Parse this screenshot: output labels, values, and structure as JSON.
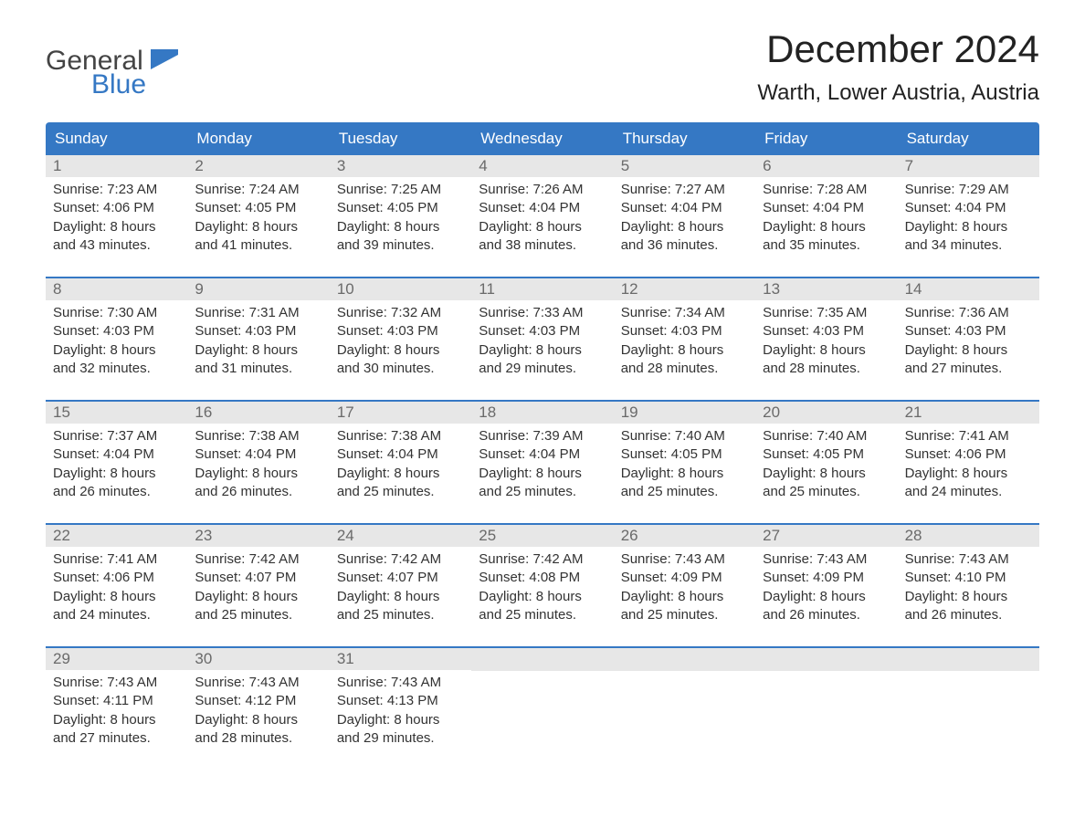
{
  "logo": {
    "top": "General",
    "bottom": "Blue"
  },
  "title": "December 2024",
  "location": "Warth, Lower Austria, Austria",
  "colors": {
    "header_bg": "#3578c4",
    "header_text": "#ffffff",
    "daynum_bg": "#e7e7e7",
    "daynum_text": "#6a6a6a",
    "body_text": "#333333",
    "row_border": "#3578c4",
    "background": "#ffffff"
  },
  "weekdays": [
    "Sunday",
    "Monday",
    "Tuesday",
    "Wednesday",
    "Thursday",
    "Friday",
    "Saturday"
  ],
  "weeks": [
    [
      {
        "n": "1",
        "sr": "Sunrise: 7:23 AM",
        "ss": "Sunset: 4:06 PM",
        "d1": "Daylight: 8 hours",
        "d2": "and 43 minutes."
      },
      {
        "n": "2",
        "sr": "Sunrise: 7:24 AM",
        "ss": "Sunset: 4:05 PM",
        "d1": "Daylight: 8 hours",
        "d2": "and 41 minutes."
      },
      {
        "n": "3",
        "sr": "Sunrise: 7:25 AM",
        "ss": "Sunset: 4:05 PM",
        "d1": "Daylight: 8 hours",
        "d2": "and 39 minutes."
      },
      {
        "n": "4",
        "sr": "Sunrise: 7:26 AM",
        "ss": "Sunset: 4:04 PM",
        "d1": "Daylight: 8 hours",
        "d2": "and 38 minutes."
      },
      {
        "n": "5",
        "sr": "Sunrise: 7:27 AM",
        "ss": "Sunset: 4:04 PM",
        "d1": "Daylight: 8 hours",
        "d2": "and 36 minutes."
      },
      {
        "n": "6",
        "sr": "Sunrise: 7:28 AM",
        "ss": "Sunset: 4:04 PM",
        "d1": "Daylight: 8 hours",
        "d2": "and 35 minutes."
      },
      {
        "n": "7",
        "sr": "Sunrise: 7:29 AM",
        "ss": "Sunset: 4:04 PM",
        "d1": "Daylight: 8 hours",
        "d2": "and 34 minutes."
      }
    ],
    [
      {
        "n": "8",
        "sr": "Sunrise: 7:30 AM",
        "ss": "Sunset: 4:03 PM",
        "d1": "Daylight: 8 hours",
        "d2": "and 32 minutes."
      },
      {
        "n": "9",
        "sr": "Sunrise: 7:31 AM",
        "ss": "Sunset: 4:03 PM",
        "d1": "Daylight: 8 hours",
        "d2": "and 31 minutes."
      },
      {
        "n": "10",
        "sr": "Sunrise: 7:32 AM",
        "ss": "Sunset: 4:03 PM",
        "d1": "Daylight: 8 hours",
        "d2": "and 30 minutes."
      },
      {
        "n": "11",
        "sr": "Sunrise: 7:33 AM",
        "ss": "Sunset: 4:03 PM",
        "d1": "Daylight: 8 hours",
        "d2": "and 29 minutes."
      },
      {
        "n": "12",
        "sr": "Sunrise: 7:34 AM",
        "ss": "Sunset: 4:03 PM",
        "d1": "Daylight: 8 hours",
        "d2": "and 28 minutes."
      },
      {
        "n": "13",
        "sr": "Sunrise: 7:35 AM",
        "ss": "Sunset: 4:03 PM",
        "d1": "Daylight: 8 hours",
        "d2": "and 28 minutes."
      },
      {
        "n": "14",
        "sr": "Sunrise: 7:36 AM",
        "ss": "Sunset: 4:03 PM",
        "d1": "Daylight: 8 hours",
        "d2": "and 27 minutes."
      }
    ],
    [
      {
        "n": "15",
        "sr": "Sunrise: 7:37 AM",
        "ss": "Sunset: 4:04 PM",
        "d1": "Daylight: 8 hours",
        "d2": "and 26 minutes."
      },
      {
        "n": "16",
        "sr": "Sunrise: 7:38 AM",
        "ss": "Sunset: 4:04 PM",
        "d1": "Daylight: 8 hours",
        "d2": "and 26 minutes."
      },
      {
        "n": "17",
        "sr": "Sunrise: 7:38 AM",
        "ss": "Sunset: 4:04 PM",
        "d1": "Daylight: 8 hours",
        "d2": "and 25 minutes."
      },
      {
        "n": "18",
        "sr": "Sunrise: 7:39 AM",
        "ss": "Sunset: 4:04 PM",
        "d1": "Daylight: 8 hours",
        "d2": "and 25 minutes."
      },
      {
        "n": "19",
        "sr": "Sunrise: 7:40 AM",
        "ss": "Sunset: 4:05 PM",
        "d1": "Daylight: 8 hours",
        "d2": "and 25 minutes."
      },
      {
        "n": "20",
        "sr": "Sunrise: 7:40 AM",
        "ss": "Sunset: 4:05 PM",
        "d1": "Daylight: 8 hours",
        "d2": "and 25 minutes."
      },
      {
        "n": "21",
        "sr": "Sunrise: 7:41 AM",
        "ss": "Sunset: 4:06 PM",
        "d1": "Daylight: 8 hours",
        "d2": "and 24 minutes."
      }
    ],
    [
      {
        "n": "22",
        "sr": "Sunrise: 7:41 AM",
        "ss": "Sunset: 4:06 PM",
        "d1": "Daylight: 8 hours",
        "d2": "and 24 minutes."
      },
      {
        "n": "23",
        "sr": "Sunrise: 7:42 AM",
        "ss": "Sunset: 4:07 PM",
        "d1": "Daylight: 8 hours",
        "d2": "and 25 minutes."
      },
      {
        "n": "24",
        "sr": "Sunrise: 7:42 AM",
        "ss": "Sunset: 4:07 PM",
        "d1": "Daylight: 8 hours",
        "d2": "and 25 minutes."
      },
      {
        "n": "25",
        "sr": "Sunrise: 7:42 AM",
        "ss": "Sunset: 4:08 PM",
        "d1": "Daylight: 8 hours",
        "d2": "and 25 minutes."
      },
      {
        "n": "26",
        "sr": "Sunrise: 7:43 AM",
        "ss": "Sunset: 4:09 PM",
        "d1": "Daylight: 8 hours",
        "d2": "and 25 minutes."
      },
      {
        "n": "27",
        "sr": "Sunrise: 7:43 AM",
        "ss": "Sunset: 4:09 PM",
        "d1": "Daylight: 8 hours",
        "d2": "and 26 minutes."
      },
      {
        "n": "28",
        "sr": "Sunrise: 7:43 AM",
        "ss": "Sunset: 4:10 PM",
        "d1": "Daylight: 8 hours",
        "d2": "and 26 minutes."
      }
    ],
    [
      {
        "n": "29",
        "sr": "Sunrise: 7:43 AM",
        "ss": "Sunset: 4:11 PM",
        "d1": "Daylight: 8 hours",
        "d2": "and 27 minutes."
      },
      {
        "n": "30",
        "sr": "Sunrise: 7:43 AM",
        "ss": "Sunset: 4:12 PM",
        "d1": "Daylight: 8 hours",
        "d2": "and 28 minutes."
      },
      {
        "n": "31",
        "sr": "Sunrise: 7:43 AM",
        "ss": "Sunset: 4:13 PM",
        "d1": "Daylight: 8 hours",
        "d2": "and 29 minutes."
      },
      null,
      null,
      null,
      null
    ]
  ]
}
